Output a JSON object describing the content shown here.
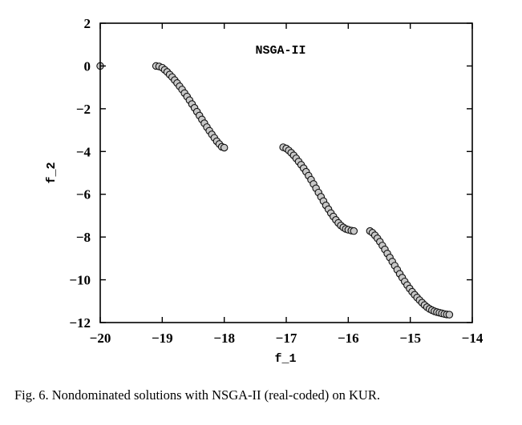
{
  "chart_data": {
    "type": "scatter",
    "title": "NSGA-II",
    "xlabel": "f_1",
    "ylabel": "f_2",
    "xlim": [
      -20,
      -14
    ],
    "ylim": [
      -12,
      2
    ],
    "x_ticks": [
      -20,
      -19,
      -18,
      -17,
      -16,
      -15,
      -14
    ],
    "y_ticks": [
      2,
      0,
      -2,
      -4,
      -6,
      -8,
      -10,
      -12
    ],
    "grid": false,
    "series": [
      {
        "points": [
          [
            -20.0,
            0.0
          ],
          [
            -19.1,
            0.0
          ],
          [
            -19.05,
            -0.02
          ],
          [
            -19.0,
            -0.08
          ],
          [
            -18.96,
            -0.18
          ],
          [
            -18.92,
            -0.28
          ],
          [
            -18.88,
            -0.4
          ],
          [
            -18.84,
            -0.52
          ],
          [
            -18.8,
            -0.66
          ],
          [
            -18.76,
            -0.8
          ],
          [
            -18.72,
            -0.95
          ],
          [
            -18.68,
            -1.1
          ],
          [
            -18.64,
            -1.27
          ],
          [
            -18.6,
            -1.43
          ],
          [
            -18.56,
            -1.6
          ],
          [
            -18.52,
            -1.78
          ],
          [
            -18.48,
            -1.96
          ],
          [
            -18.44,
            -2.14
          ],
          [
            -18.4,
            -2.32
          ],
          [
            -18.36,
            -2.5
          ],
          [
            -18.32,
            -2.68
          ],
          [
            -18.28,
            -2.86
          ],
          [
            -18.24,
            -3.03
          ],
          [
            -18.2,
            -3.2
          ],
          [
            -18.16,
            -3.36
          ],
          [
            -18.12,
            -3.52
          ],
          [
            -18.08,
            -3.65
          ],
          [
            -18.04,
            -3.78
          ],
          [
            -18.0,
            -3.82
          ],
          [
            -17.05,
            -3.8
          ],
          [
            -17.0,
            -3.86
          ],
          [
            -16.96,
            -3.95
          ],
          [
            -16.92,
            -4.06
          ],
          [
            -16.88,
            -4.18
          ],
          [
            -16.84,
            -4.32
          ],
          [
            -16.8,
            -4.47
          ],
          [
            -16.76,
            -4.62
          ],
          [
            -16.72,
            -4.78
          ],
          [
            -16.68,
            -4.95
          ],
          [
            -16.64,
            -5.13
          ],
          [
            -16.6,
            -5.32
          ],
          [
            -16.56,
            -5.52
          ],
          [
            -16.52,
            -5.72
          ],
          [
            -16.48,
            -5.92
          ],
          [
            -16.44,
            -6.12
          ],
          [
            -16.4,
            -6.32
          ],
          [
            -16.36,
            -6.52
          ],
          [
            -16.32,
            -6.7
          ],
          [
            -16.28,
            -6.88
          ],
          [
            -16.24,
            -7.04
          ],
          [
            -16.2,
            -7.2
          ],
          [
            -16.16,
            -7.34
          ],
          [
            -16.12,
            -7.46
          ],
          [
            -16.08,
            -7.55
          ],
          [
            -16.04,
            -7.62
          ],
          [
            -16.0,
            -7.66
          ],
          [
            -15.95,
            -7.7
          ],
          [
            -15.91,
            -7.72
          ],
          [
            -15.65,
            -7.72
          ],
          [
            -15.61,
            -7.8
          ],
          [
            -15.57,
            -7.92
          ],
          [
            -15.53,
            -8.06
          ],
          [
            -15.49,
            -8.22
          ],
          [
            -15.45,
            -8.4
          ],
          [
            -15.41,
            -8.58
          ],
          [
            -15.37,
            -8.77
          ],
          [
            -15.33,
            -8.96
          ],
          [
            -15.29,
            -9.15
          ],
          [
            -15.25,
            -9.34
          ],
          [
            -15.21,
            -9.53
          ],
          [
            -15.17,
            -9.72
          ],
          [
            -15.13,
            -9.9
          ],
          [
            -15.09,
            -10.08
          ],
          [
            -15.05,
            -10.25
          ],
          [
            -15.01,
            -10.41
          ],
          [
            -14.97,
            -10.56
          ],
          [
            -14.93,
            -10.7
          ],
          [
            -14.89,
            -10.83
          ],
          [
            -14.85,
            -10.95
          ],
          [
            -14.81,
            -11.07
          ],
          [
            -14.77,
            -11.18
          ],
          [
            -14.73,
            -11.28
          ],
          [
            -14.69,
            -11.36
          ],
          [
            -14.65,
            -11.42
          ],
          [
            -14.61,
            -11.47
          ],
          [
            -14.57,
            -11.51
          ],
          [
            -14.53,
            -11.54
          ],
          [
            -14.49,
            -11.57
          ],
          [
            -14.45,
            -11.6
          ],
          [
            -14.41,
            -11.62
          ],
          [
            -14.37,
            -11.63
          ]
        ]
      }
    ]
  },
  "caption": "Fig. 6.    Nondominated solutions with NSGA-II (real-coded) on KUR."
}
